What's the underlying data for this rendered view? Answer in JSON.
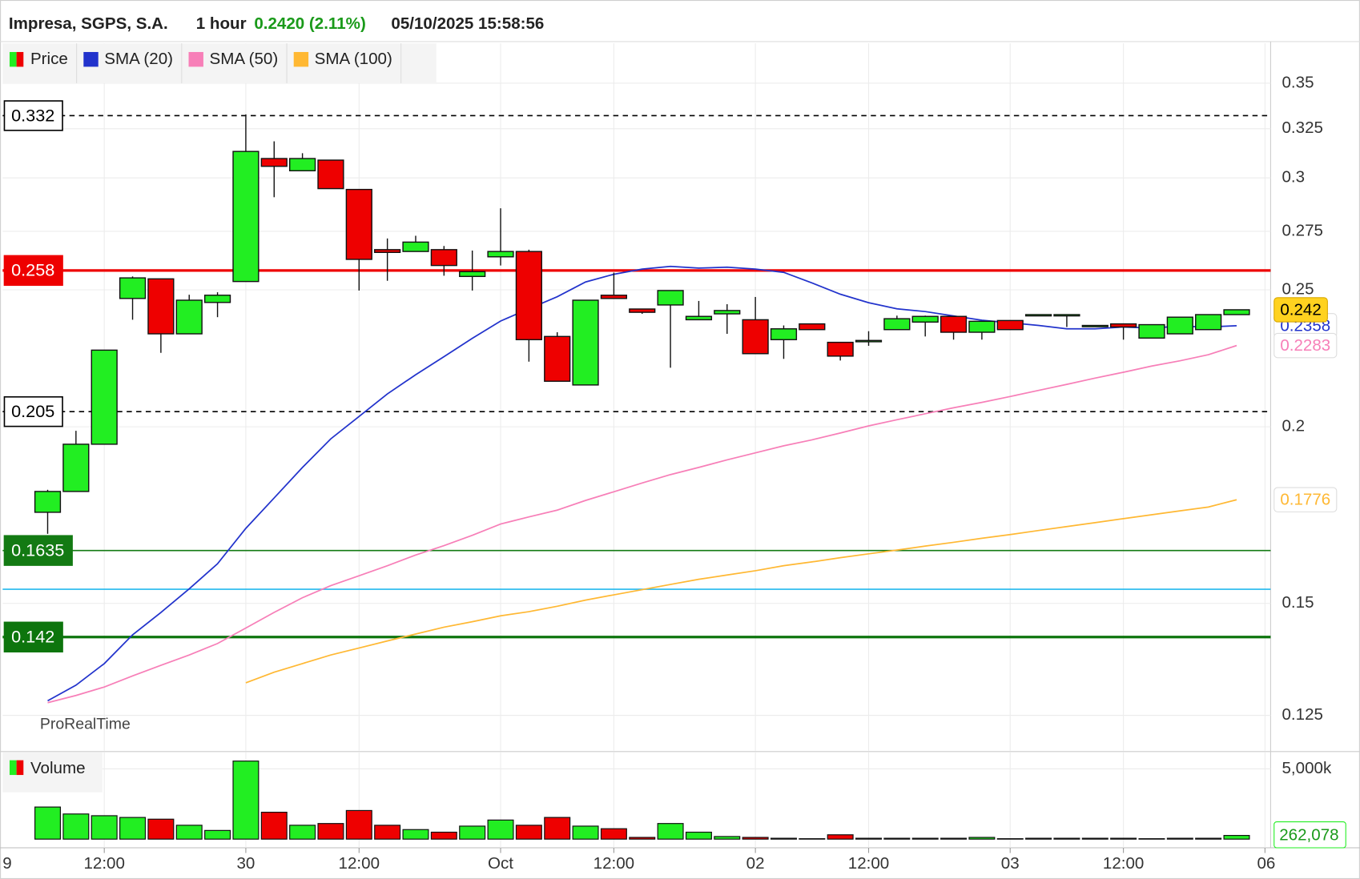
{
  "chart_data": [
    {
      "type": "candlestick",
      "title": "Impresa, SGPS, S.A.",
      "interval": "1 hour",
      "change": "0.2420 (2.11%)",
      "timestamp": "05/10/2025 15:58:56",
      "watermark": "ProRealTime",
      "name": "Price",
      "up_color": "#22ee22",
      "down_color": "#ee0000",
      "log_scale": true,
      "grid": true,
      "open": [
        0.174,
        0.18,
        0.1944,
        0.2465,
        0.2545,
        0.2327,
        0.2449,
        0.2534,
        0.3096,
        0.3035,
        0.3088,
        0.2944,
        0.2669,
        0.2661,
        0.2669,
        0.2555,
        0.2638,
        0.2661,
        0.2317,
        0.2141,
        0.2478,
        0.2423,
        0.2439,
        0.2381,
        0.2404,
        0.2381,
        0.2305,
        0.2365,
        0.2295,
        0.2302,
        0.2343,
        0.2372,
        0.2394,
        0.2333,
        0.2378,
        0.2401,
        0.2401,
        0.2359,
        0.2365,
        0.2311,
        0.2327,
        0.2343,
        0.2401
      ],
      "high": [
        0.1805,
        0.1987,
        0.2266,
        0.2555,
        0.2545,
        0.248,
        0.249,
        0.3327,
        0.3184,
        0.3123,
        0.3088,
        0.2944,
        0.2718,
        0.273,
        0.2685,
        0.2665,
        0.2855,
        0.2669,
        0.2333,
        0.2458,
        0.2571,
        0.2423,
        0.2497,
        0.2455,
        0.2442,
        0.2471,
        0.2359,
        0.2365,
        0.2295,
        0.2337,
        0.2397,
        0.2397,
        0.2394,
        0.2375,
        0.2378,
        0.2401,
        0.2401,
        0.2359,
        0.2365,
        0.2362,
        0.2391,
        0.2401,
        0.242
      ],
      "low": [
        0.168,
        0.18,
        0.1944,
        0.2381,
        0.2256,
        0.2327,
        0.2391,
        0.2534,
        0.2907,
        0.3035,
        0.2948,
        0.2497,
        0.2537,
        0.2661,
        0.2558,
        0.2497,
        0.2601,
        0.2224,
        0.2154,
        0.2141,
        0.2465,
        0.2404,
        0.2202,
        0.2381,
        0.2327,
        0.2253,
        0.2234,
        0.2343,
        0.2228,
        0.2282,
        0.2343,
        0.2317,
        0.2305,
        0.2305,
        0.2343,
        0.2401,
        0.2353,
        0.2359,
        0.2305,
        0.2311,
        0.2327,
        0.2343,
        0.2401
      ],
      "close": [
        0.18,
        0.1944,
        0.2266,
        0.2549,
        0.2327,
        0.2458,
        0.2478,
        0.3132,
        0.3057,
        0.3096,
        0.2948,
        0.2627,
        0.2657,
        0.2702,
        0.2601,
        0.2575,
        0.2661,
        0.2305,
        0.2154,
        0.2458,
        0.2465,
        0.241,
        0.2497,
        0.2394,
        0.2417,
        0.2253,
        0.2346,
        0.2343,
        0.2244,
        0.2302,
        0.2385,
        0.2394,
        0.2333,
        0.2375,
        0.2343,
        0.2401,
        0.2401,
        0.2359,
        0.2353,
        0.2362,
        0.2391,
        0.2401,
        0.242
      ],
      "series": [
        {
          "name": "SMA (20)",
          "color": "#2233cc",
          "values": [
            0.128,
            0.1313,
            0.136,
            0.1425,
            0.1478,
            0.1536,
            0.16,
            0.1695,
            0.1781,
            0.1872,
            0.1961,
            0.2034,
            0.211,
            0.2177,
            0.2242,
            0.231,
            0.2376,
            0.2424,
            0.2472,
            0.2532,
            0.2564,
            0.2586,
            0.2597,
            0.259,
            0.2594,
            0.2586,
            0.2572,
            0.2528,
            0.2482,
            0.2448,
            0.2424,
            0.2413,
            0.2396,
            0.2379,
            0.2369,
            0.2359,
            0.2346,
            0.2346,
            0.2353,
            0.2349,
            0.2356,
            0.2353,
            0.2358
          ]
        },
        {
          "name": "SMA (50)",
          "color": "#f77fb8",
          "values": [
            0.1276,
            0.1291,
            0.1309,
            0.1333,
            0.1356,
            0.1379,
            0.1405,
            0.1441,
            0.1478,
            0.1514,
            0.1544,
            0.1569,
            0.1595,
            0.1623,
            0.1648,
            0.1676,
            0.1707,
            0.1727,
            0.1746,
            0.1774,
            0.1799,
            0.1825,
            0.185,
            0.1872,
            0.1895,
            0.1917,
            0.1939,
            0.1958,
            0.198,
            0.2003,
            0.2023,
            0.2043,
            0.2063,
            0.2081,
            0.2101,
            0.2122,
            0.2143,
            0.2165,
            0.2186,
            0.2208,
            0.2227,
            0.2249,
            0.2283
          ]
        },
        {
          "name": "SMA (100)",
          "color": "#ffb833",
          "values": [
            null,
            null,
            null,
            null,
            null,
            null,
            null,
            0.1318,
            0.1341,
            0.136,
            0.1379,
            0.1395,
            0.1411,
            0.1427,
            0.1443,
            0.1456,
            0.147,
            0.148,
            0.1493,
            0.1508,
            0.1521,
            0.1534,
            0.1547,
            0.156,
            0.1571,
            0.1582,
            0.1595,
            0.1605,
            0.1616,
            0.1626,
            0.1636,
            0.1647,
            0.1657,
            0.1668,
            0.1678,
            0.1689,
            0.17,
            0.1711,
            0.1722,
            0.1733,
            0.1744,
            0.1755,
            0.1776
          ]
        }
      ],
      "levels": [
        {
          "value": 0.332,
          "color": "#000000",
          "style": "dashed",
          "tag": true
        },
        {
          "value": 0.258,
          "color": "#ee0000",
          "style": "thick",
          "tag": true
        },
        {
          "value": 0.205,
          "color": "#000000",
          "style": "dashed",
          "tag": true
        },
        {
          "value": 0.1635,
          "color": "#137a13",
          "style": "thin",
          "tag": true
        },
        {
          "value": 0.1535,
          "color": "#22b8ee",
          "style": "thin",
          "tag": false
        },
        {
          "value": 0.142,
          "color": "#0d750d",
          "style": "thick",
          "tag": true
        }
      ],
      "xlim": [
        -1.59,
        43.2
      ],
      "xticks": [
        {
          "value": -2,
          "label": "9"
        },
        {
          "value": 2,
          "label": "12:00"
        },
        {
          "value": 7,
          "label": "30"
        },
        {
          "value": 11,
          "label": "12:00"
        },
        {
          "value": 16,
          "label": "Oct"
        },
        {
          "value": 20,
          "label": "12:00"
        },
        {
          "value": 25,
          "label": "02"
        },
        {
          "value": 29,
          "label": "12:00"
        },
        {
          "value": 34,
          "label": "03"
        },
        {
          "value": 38,
          "label": "12:00"
        },
        {
          "value": 43,
          "label": "06"
        }
      ],
      "ylim": [
        0.118,
        0.3735
      ],
      "yticks": [
        0.125,
        0.15,
        0.2,
        0.25,
        0.275,
        0.3,
        0.325,
        0.35
      ]
    },
    {
      "type": "bar",
      "name": "Volume",
      "values": [
        2284000,
        1790000,
        1667000,
        1543000,
        1420000,
        988000,
        617000,
        5556000,
        1914000,
        988000,
        1111000,
        2037000,
        988000,
        679000,
        494000,
        926000,
        1358000,
        988000,
        1543000,
        926000,
        741000,
        123000,
        1111000,
        494000,
        185000,
        123000,
        62000,
        31000,
        309000,
        62000,
        62000,
        62000,
        62000,
        123000,
        31000,
        62000,
        62000,
        62000,
        62000,
        31000,
        62000,
        62000,
        262078
      ],
      "value_labels": [
        null,
        null,
        null,
        null,
        null,
        null,
        null,
        null,
        null,
        null,
        null,
        null,
        null,
        null,
        null,
        null,
        null,
        null,
        null,
        null,
        null,
        null,
        null,
        null,
        null,
        null,
        null,
        null,
        null,
        null,
        null,
        null,
        null,
        null,
        null,
        null,
        null,
        null,
        null,
        null,
        null,
        null,
        "262,078"
      ],
      "ylim": [
        0,
        6170000
      ],
      "yticks": [
        {
          "value": 5000000,
          "label": "5,000k"
        }
      ]
    }
  ]
}
